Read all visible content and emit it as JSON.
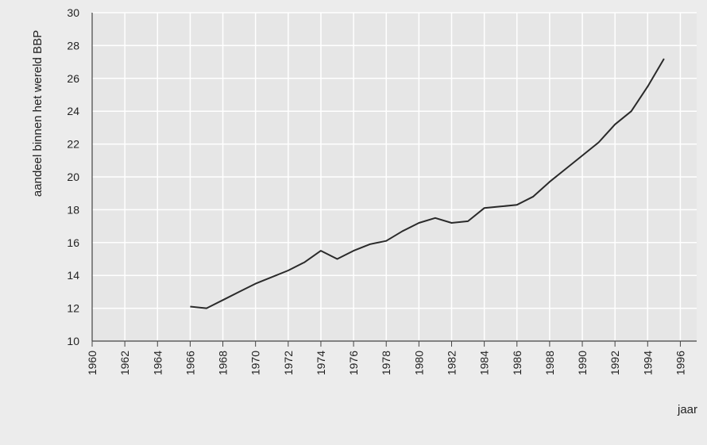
{
  "chart_data": {
    "type": "line",
    "title": "",
    "xlabel": "jaar",
    "ylabel": "aandeel binnen het wereld BBP",
    "xlim": [
      1960,
      1997
    ],
    "ylim": [
      10,
      30
    ],
    "x_ticks": [
      1960,
      1962,
      1964,
      1966,
      1968,
      1970,
      1972,
      1974,
      1976,
      1978,
      1980,
      1982,
      1984,
      1986,
      1988,
      1990,
      1992,
      1994,
      1996
    ],
    "y_ticks": [
      10,
      12,
      14,
      16,
      18,
      20,
      22,
      24,
      26,
      28,
      30
    ],
    "grid": true,
    "legend": "none",
    "line_color": "#2a2a2a",
    "grid_color": "#ffffff",
    "plot_background": "#e6e6e6",
    "series": [
      {
        "x": [
          1966,
          1967,
          1968,
          1969,
          1970,
          1971,
          1972,
          1973,
          1974,
          1975,
          1976,
          1977,
          1978,
          1979,
          1980,
          1981,
          1982,
          1983,
          1984,
          1985,
          1986,
          1987,
          1988,
          1989,
          1990,
          1991,
          1992,
          1993,
          1994,
          1995
        ],
        "y": [
          12.1,
          12.0,
          12.5,
          13.0,
          13.5,
          13.9,
          14.3,
          14.8,
          15.5,
          15.0,
          15.5,
          15.9,
          16.1,
          16.7,
          17.2,
          17.5,
          17.2,
          17.3,
          18.1,
          18.2,
          18.3,
          18.8,
          19.7,
          20.5,
          21.3,
          22.1,
          23.2,
          24.0,
          25.5,
          27.2
        ]
      }
    ]
  }
}
